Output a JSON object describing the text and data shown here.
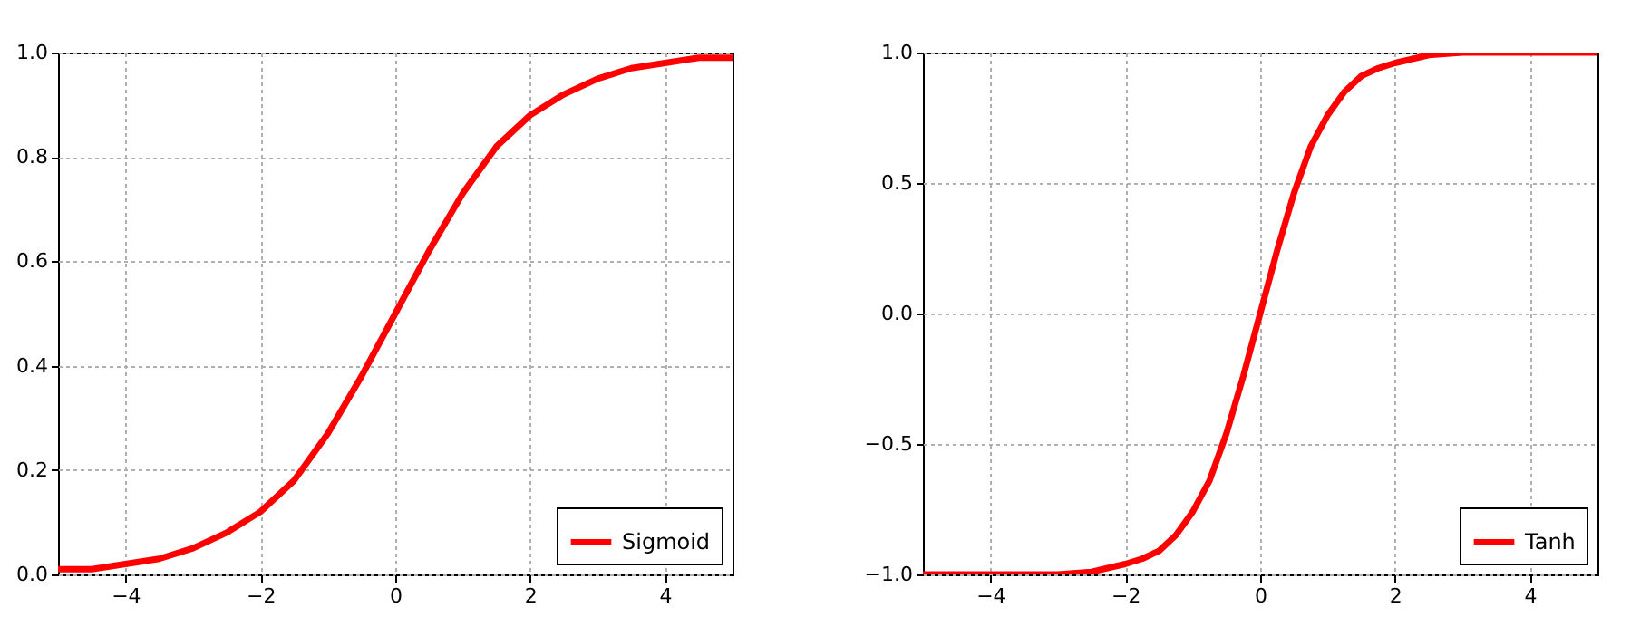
{
  "chart_data": [
    {
      "type": "line",
      "x": [
        -5,
        -4.5,
        -4,
        -3.5,
        -3,
        -2.5,
        -2,
        -1.5,
        -1,
        -0.5,
        0,
        0.5,
        1,
        1.5,
        2,
        2.5,
        3,
        3.5,
        4,
        4.5,
        5
      ],
      "series": [
        {
          "name": "Sigmoid",
          "color": "#ff0000",
          "values": [
            0.01,
            0.01,
            0.02,
            0.03,
            0.05,
            0.08,
            0.12,
            0.18,
            0.27,
            0.38,
            0.5,
            0.62,
            0.73,
            0.82,
            0.88,
            0.92,
            0.95,
            0.97,
            0.98,
            0.99,
            0.99
          ]
        }
      ],
      "xlim": [
        -5,
        5
      ],
      "xticks": [
        -4,
        -2,
        0,
        2,
        4
      ],
      "ylim": [
        0,
        1
      ],
      "yticks": [
        {
          "value": 0,
          "label": "0.0"
        },
        {
          "value": 0.2,
          "label": "0.2"
        },
        {
          "value": 0.4,
          "label": "0.4"
        },
        {
          "value": 0.6,
          "label": "0.6"
        },
        {
          "value": 0.8,
          "label": "0.8"
        },
        {
          "value": 1,
          "label": "1.0"
        }
      ],
      "grid": true,
      "legend": "bottom right",
      "line_style": "solid",
      "marker": "none"
    },
    {
      "type": "line",
      "x": [
        -5,
        -4,
        -3,
        -2.5,
        -2,
        -1.75,
        -1.5,
        -1.25,
        -1,
        -0.75,
        -0.5,
        -0.25,
        0,
        0.25,
        0.5,
        0.75,
        1,
        1.25,
        1.5,
        1.75,
        2,
        2.5,
        3,
        4,
        5
      ],
      "series": [
        {
          "name": "Tanh",
          "color": "#ff0000",
          "values": [
            -1,
            -1,
            -1,
            -0.99,
            -0.96,
            -0.94,
            -0.91,
            -0.85,
            -0.76,
            -0.64,
            -0.46,
            -0.24,
            0,
            0.24,
            0.46,
            0.64,
            0.76,
            0.85,
            0.91,
            0.94,
            0.96,
            0.99,
            1,
            1,
            1
          ]
        }
      ],
      "xlim": [
        -5,
        5
      ],
      "xticks": [
        -4,
        -2,
        0,
        2,
        4
      ],
      "ylim": [
        -1,
        1
      ],
      "yticks": [
        {
          "value": -1,
          "label": "−1.0"
        },
        {
          "value": -0.5,
          "label": "−0.5"
        },
        {
          "value": 0,
          "label": "0.0"
        },
        {
          "value": 0.5,
          "label": "0.5"
        },
        {
          "value": 1,
          "label": "1.0"
        }
      ],
      "grid": true,
      "legend": "bottom right",
      "line_style": "solid",
      "marker": "none"
    }
  ]
}
